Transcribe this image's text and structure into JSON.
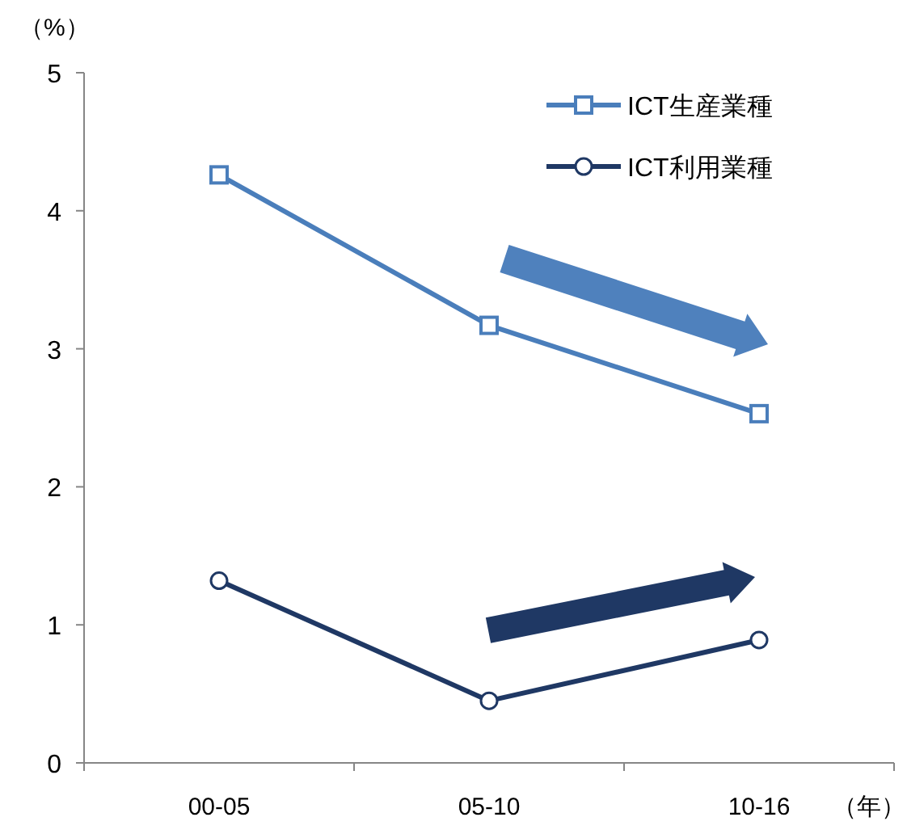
{
  "chart_data": {
    "type": "line",
    "ylabel": "（%）",
    "xlabel": "（年）",
    "categories": [
      "00-05",
      "05-10",
      "10-16"
    ],
    "series": [
      {
        "name": "ICT生産業種",
        "color": "#4a7ebb",
        "marker": "square",
        "values": [
          4.26,
          3.17,
          2.53
        ]
      },
      {
        "name": "ICT利用業種",
        "color": "#1f3864",
        "marker": "circle",
        "values": [
          1.32,
          0.45,
          0.89
        ]
      }
    ],
    "ylim": [
      0,
      5
    ],
    "yticks": [
      0,
      1,
      2,
      3,
      4,
      5
    ],
    "grid": false,
    "legend": "top right"
  }
}
